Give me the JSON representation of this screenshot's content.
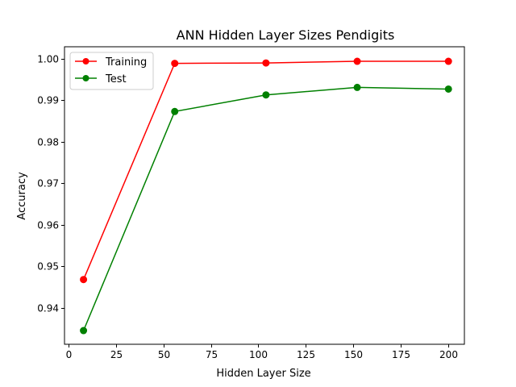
{
  "chart_data": {
    "type": "line",
    "title": "ANN Hidden Layer Sizes Pendigits",
    "xlabel": "Hidden Layer Size",
    "ylabel": "Accuracy",
    "x": [
      8,
      56,
      104,
      152,
      200
    ],
    "xlim": [
      -2,
      208.4
    ],
    "ylim": [
      0.9312,
      1.0029
    ],
    "xticks": [
      0,
      25,
      50,
      75,
      100,
      125,
      150,
      175,
      200
    ],
    "xtick_labels": [
      "0",
      "25",
      "50",
      "75",
      "100",
      "125",
      "150",
      "175",
      "200"
    ],
    "yticks": [
      0.94,
      0.95,
      0.96,
      0.97,
      0.98,
      0.99,
      1.0
    ],
    "ytick_labels": [
      "0.94",
      "0.95",
      "0.96",
      "0.97",
      "0.98",
      "0.99",
      "1.00"
    ],
    "grid": false,
    "legend_position": "top-left",
    "series": [
      {
        "name": "Training",
        "color": "#ff0000",
        "values": [
          0.9468,
          0.9989,
          0.999,
          0.9994,
          0.9994
        ]
      },
      {
        "name": "Test",
        "color": "#008000",
        "values": [
          0.9345,
          0.9873,
          0.9913,
          0.9931,
          0.9927
        ]
      }
    ]
  }
}
